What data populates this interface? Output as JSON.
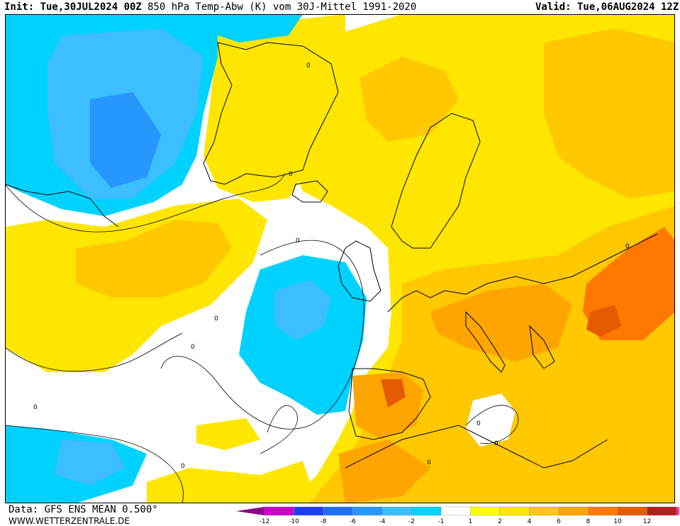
{
  "header": {
    "init": "Init: Tue,30JUL2024 00Z",
    "title": "850 hPa Temp-Abw (K) vom 30J-Mittel 1991-2020",
    "valid": "Valid: Tue,06AUG2024 12Z"
  },
  "footer": {
    "data": "Data: GFS ENS MEAN 0.500°",
    "site": "WWW.WETTERZENTRALE.DE"
  },
  "legend": {
    "colors": [
      "#8b008b",
      "#c800c8",
      "#1e3cff",
      "#1e6eff",
      "#2896ff",
      "#3cbeff",
      "#00d2ff",
      "#ffffff",
      "#ffff00",
      "#ffe600",
      "#ffc800",
      "#ffa500",
      "#ff7800",
      "#e65a00",
      "#b41e1e",
      "#ff3296"
    ],
    "labels": [
      "-12",
      "-10",
      "-8",
      "-6",
      "-4",
      "-2",
      "-1",
      "1",
      "2",
      "4",
      "6",
      "8",
      "10",
      "12"
    ]
  },
  "map": {
    "contour_labels": [
      "0",
      "0",
      "0",
      "0",
      "0",
      "0",
      "0",
      "0",
      "0",
      "0",
      "0"
    ]
  }
}
